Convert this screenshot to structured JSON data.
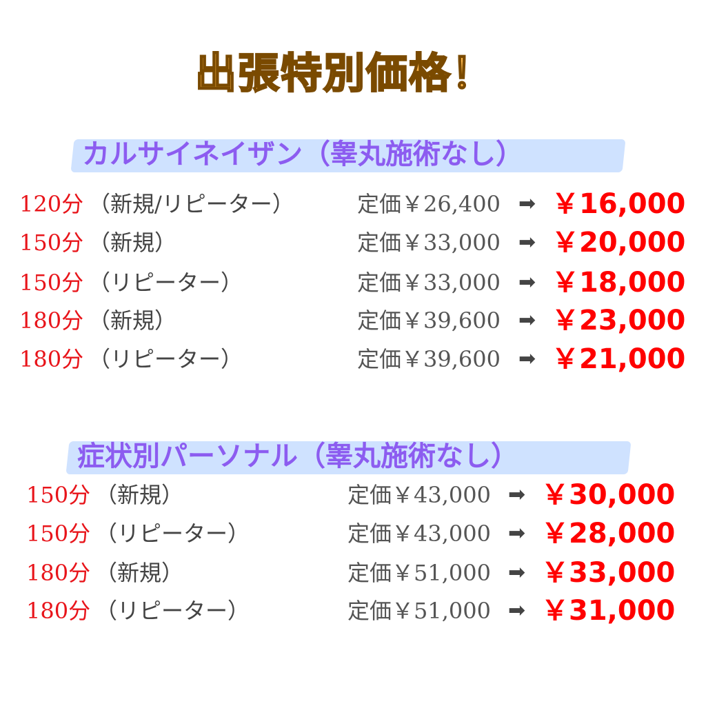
{
  "title": "出張特別価格！",
  "sections": [
    {
      "heading": "カルサイネイザン（睾丸施術なし）",
      "rows": [
        {
          "duration": "120分",
          "type": "（新規/リピーター）",
          "list_price": "定価￥26,400",
          "arrow": "➡",
          "sale_price": "￥16,000"
        },
        {
          "duration": "150分",
          "type": "（新規）",
          "list_price": "定価￥33,000",
          "arrow": "➡",
          "sale_price": "￥20,000"
        },
        {
          "duration": "150分",
          "type": "（リピーター）",
          "list_price": "定価￥33,000",
          "arrow": "➡",
          "sale_price": "￥18,000"
        },
        {
          "duration": "180分",
          "type": "（新規）",
          "list_price": "定価￥39,600",
          "arrow": "➡",
          "sale_price": "￥23,000"
        },
        {
          "duration": "180分",
          "type": "（リピーター）",
          "list_price": "定価￥39,600",
          "arrow": "➡",
          "sale_price": "￥21,000"
        }
      ]
    },
    {
      "heading": "症状別パーソナル（睾丸施術なし）",
      "rows": [
        {
          "duration": "150分",
          "type": "（新規）",
          "list_price": "定価￥43,000",
          "arrow": "➡",
          "sale_price": "￥30,000"
        },
        {
          "duration": "150分",
          "type": "（リピーター）",
          "list_price": "定価￥43,000",
          "arrow": "➡",
          "sale_price": "￥28,000"
        },
        {
          "duration": "180分",
          "type": "（新規）",
          "list_price": "定価￥51,000",
          "arrow": "➡",
          "sale_price": "￥33,000"
        },
        {
          "duration": "180分",
          "type": "（リピーター）",
          "list_price": "定価￥51,000",
          "arrow": "➡",
          "sale_price": "￥31,000"
        }
      ]
    }
  ],
  "colors": {
    "title": "#ffb84d",
    "heading": "#8c5cf0",
    "highlight": "#cfe2ff",
    "duration": "#e8141a",
    "sale": "#ff0000"
  }
}
